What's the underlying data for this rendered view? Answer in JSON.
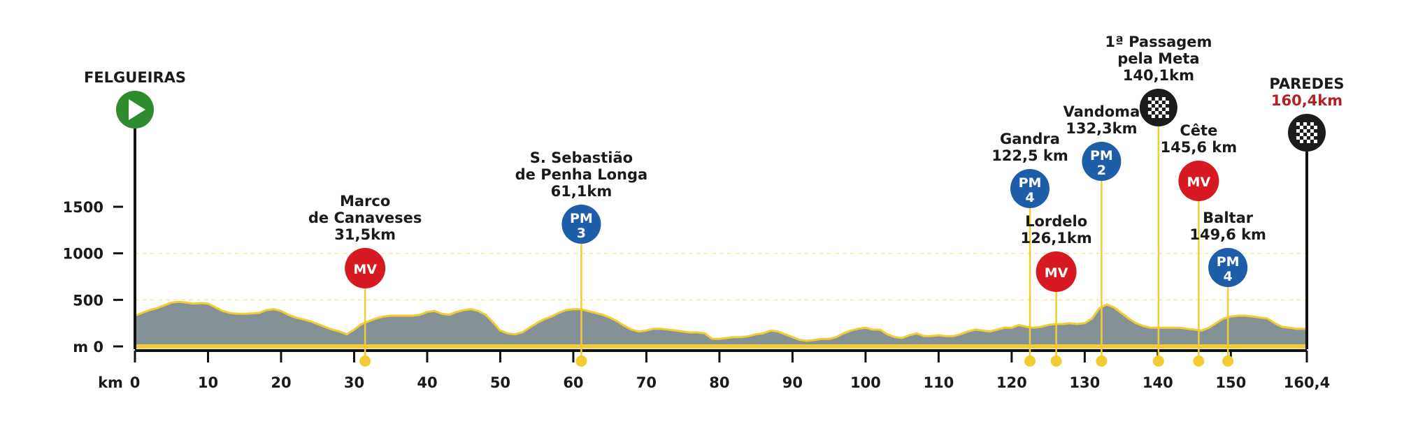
{
  "chart_data": {
    "type": "area",
    "title": "",
    "xlabel": "km",
    "ylabel": "m",
    "xlim": [
      0,
      160.4
    ],
    "ylim": [
      0,
      1500
    ],
    "x_ticks": [
      "0",
      "10",
      "20",
      "30",
      "40",
      "50",
      "60",
      "70",
      "80",
      "90",
      "100",
      "110",
      "120",
      "130",
      "140",
      "150",
      "160,4"
    ],
    "y_ticks": [
      {
        "value": 0,
        "label": "m 0"
      },
      {
        "value": 500,
        "label": "500"
      },
      {
        "value": 1000,
        "label": "1000"
      },
      {
        "value": 1500,
        "label": "1500"
      }
    ],
    "grid_values": [
      500,
      1000
    ],
    "colors": {
      "terrain": "#849298",
      "outline": "#f2cd31",
      "pm": "#1e5ea8",
      "mv": "#d71a21",
      "start": "#2e8b2e",
      "finish": "#1c1c1c",
      "finish_dist": "#b22222"
    },
    "elevation": {
      "x": [
        0,
        1,
        2,
        3,
        4,
        5,
        6,
        7,
        8,
        9,
        10,
        11,
        12,
        13,
        14,
        15,
        16,
        17,
        18,
        19,
        20,
        21,
        22,
        23,
        24,
        25,
        26,
        27,
        28,
        29,
        30,
        31,
        32,
        33,
        34,
        35,
        36,
        37,
        38,
        39,
        40,
        41,
        42,
        43,
        44,
        45,
        46,
        47,
        48,
        49,
        50,
        51,
        52,
        53,
        54,
        55,
        56,
        57,
        58,
        59,
        60,
        61,
        62,
        63,
        64,
        65,
        66,
        67,
        68,
        69,
        70,
        71,
        72,
        73,
        74,
        75,
        76,
        77,
        78,
        79,
        80,
        81,
        82,
        83,
        84,
        85,
        86,
        87,
        88,
        89,
        90,
        91,
        92,
        93,
        94,
        95,
        96,
        97,
        98,
        99,
        100,
        101,
        102,
        103,
        104,
        105,
        106,
        107,
        108,
        109,
        110,
        111,
        112,
        113,
        114,
        115,
        116,
        117,
        118,
        119,
        120,
        121,
        122,
        123,
        124,
        125,
        126,
        127,
        128,
        129,
        130,
        131,
        132,
        133,
        134,
        135,
        136,
        137,
        138,
        139,
        140,
        141,
        142,
        143,
        144,
        145,
        146,
        147,
        148,
        149,
        150,
        151,
        152,
        153,
        154,
        155,
        156,
        157,
        158,
        159,
        160.4
      ],
      "y": [
        330,
        360,
        390,
        410,
        440,
        470,
        480,
        470,
        460,
        465,
        460,
        420,
        380,
        360,
        350,
        350,
        355,
        360,
        390,
        400,
        380,
        340,
        310,
        290,
        270,
        240,
        210,
        180,
        160,
        130,
        180,
        240,
        270,
        300,
        320,
        330,
        330,
        330,
        330,
        340,
        370,
        380,
        350,
        340,
        370,
        390,
        400,
        380,
        340,
        260,
        170,
        140,
        130,
        150,
        200,
        250,
        290,
        320,
        360,
        390,
        400,
        400,
        380,
        360,
        340,
        310,
        270,
        220,
        180,
        160,
        170,
        190,
        190,
        180,
        170,
        160,
        150,
        150,
        140,
        80,
        80,
        90,
        100,
        100,
        110,
        130,
        140,
        170,
        160,
        130,
        100,
        70,
        60,
        70,
        80,
        80,
        100,
        140,
        170,
        190,
        200,
        180,
        180,
        130,
        100,
        90,
        120,
        140,
        110,
        110,
        120,
        110,
        110,
        130,
        160,
        180,
        170,
        160,
        180,
        200,
        200,
        230,
        210,
        200,
        210,
        230,
        240,
        240,
        250,
        240,
        250,
        300,
        410,
        450,
        420,
        360,
        300,
        250,
        220,
        200,
        200,
        200,
        200,
        200,
        190,
        180,
        170,
        200,
        250,
        300,
        320,
        330,
        330,
        320,
        310,
        300,
        250,
        210,
        200,
        190,
        190
      ]
    },
    "markers": [
      {
        "name_lines": [
          "FELGUEIRAS"
        ],
        "km": 0,
        "type": "start"
      },
      {
        "name_lines": [
          "Marco",
          "de Canaveses",
          "31,5km"
        ],
        "km": 31.5,
        "type": "MV",
        "badge_lines": [
          "MV"
        ]
      },
      {
        "name_lines": [
          "S. Sebastião",
          "de Penha Longa",
          "61,1km"
        ],
        "km": 61.1,
        "type": "PM",
        "badge_lines": [
          "PM",
          "3"
        ]
      },
      {
        "name_lines": [
          "Gandra",
          "122,5 km"
        ],
        "km": 122.5,
        "type": "PM",
        "badge_lines": [
          "PM",
          "4"
        ]
      },
      {
        "name_lines": [
          "Lordelo",
          "126,1km"
        ],
        "km": 126.1,
        "type": "MV",
        "badge_lines": [
          "MV"
        ]
      },
      {
        "name_lines": [
          "Vandoma",
          "132,3km"
        ],
        "km": 132.3,
        "type": "PM",
        "badge_lines": [
          "PM",
          "2"
        ]
      },
      {
        "name_lines": [
          "1ª Passagem",
          "pela Meta",
          "140,1km"
        ],
        "km": 140.1,
        "type": "lap"
      },
      {
        "name_lines": [
          "Cête",
          "145,6 km"
        ],
        "km": 145.6,
        "type": "MV",
        "badge_lines": [
          "MV"
        ]
      },
      {
        "name_lines": [
          "Baltar",
          "149,6 km"
        ],
        "km": 149.6,
        "type": "PM",
        "badge_lines": [
          "PM",
          "4"
        ]
      },
      {
        "name_lines": [
          "PAREDES"
        ],
        "dist_label": "160,4km",
        "km": 160.4,
        "type": "finish"
      }
    ]
  }
}
